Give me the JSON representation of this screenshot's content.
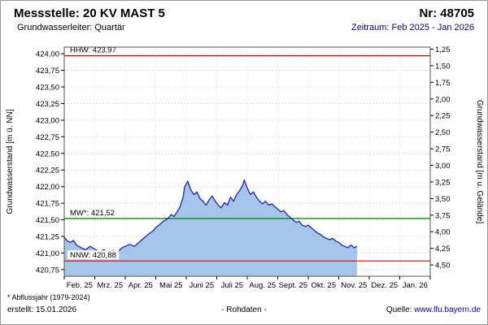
{
  "header": {
    "title": "Messstelle: 20 KV MAST 5",
    "number": "Nr: 48705",
    "aquifer": "Grundwasserleiter: Quartär",
    "period": "Zeitraum: Feb 2025 - Jan 2026"
  },
  "footer": {
    "note": "* Abflussjahr (1979-2024)",
    "created": "erstellt: 15.01.2026",
    "center": "- Rohdaten -",
    "source_label": "Quelle:",
    "source_url": "www.lfu.bayern.de"
  },
  "colors": {
    "period_text": "#0000a0",
    "link": "#0000cc",
    "series_line": "#2222bb",
    "series_fill": "#a6c5ea",
    "hhw_nnw_red": "#dd0000",
    "mw_green": "#008000"
  },
  "chart_data": {
    "type": "area",
    "title": "",
    "ylabel_left": "Grundwasserstand [m ü. NN]",
    "ylabel_right": "Grundwasserstand [m u. Gelände]",
    "ylim_left": [
      420.65,
      424.1
    ],
    "grid": true,
    "y_left_ticks": [
      "424,00",
      "423,75",
      "423,50",
      "423,25",
      "423,00",
      "422,75",
      "422,50",
      "422,25",
      "422,00",
      "421,75",
      "421,50",
      "421,25",
      "421,00",
      "420,75"
    ],
    "y_left_tick_values": [
      424.0,
      423.75,
      423.5,
      423.25,
      423.0,
      422.75,
      422.5,
      422.25,
      422.0,
      421.75,
      421.5,
      421.25,
      421.0,
      420.75
    ],
    "y_right_ticks": [
      "1,25",
      "1,50",
      "1,75",
      "2,00",
      "2,25",
      "2,50",
      "2,75",
      "3,00",
      "3,25",
      "3,50",
      "3,75",
      "4,00",
      "4,25",
      "4,50"
    ],
    "y_right_tick_values": [
      1.25,
      1.5,
      1.75,
      2.0,
      2.25,
      2.5,
      2.75,
      3.0,
      3.25,
      3.5,
      3.75,
      4.0,
      4.25,
      4.5
    ],
    "y_right_ground": 425.32,
    "x_tick_labels": [
      "Feb. 25",
      "Mrz. 25",
      "Apr. 25",
      "Mai 25",
      "Juni 25",
      "Juli 25",
      "Aug. 25",
      "Sept. 25",
      "Okt. 25",
      "Nov. 25",
      "Dez. 25",
      "Jan. 26"
    ],
    "reference_lines": [
      {
        "name": "HHW",
        "label": "HHW: 423,97",
        "value": 423.97,
        "color": "#dd0000"
      },
      {
        "name": "MW",
        "label": "MW*: 421,52",
        "value": 421.52,
        "color": "#008000"
      },
      {
        "name": "NNW",
        "label": "NNW: 420,88",
        "value": 420.88,
        "color": "#dd0000"
      }
    ],
    "series": [
      {
        "name": "Rohdaten",
        "color": "#2222bb",
        "fill": "#a6c5ea",
        "x": [
          0.0,
          0.1,
          0.2,
          0.3,
          0.4,
          0.55,
          0.7,
          0.85,
          1.0,
          1.15,
          1.3,
          1.45,
          1.6,
          1.75,
          1.9,
          2.0,
          2.15,
          2.3,
          2.45,
          2.6,
          2.75,
          2.9,
          3.0,
          3.1,
          3.25,
          3.4,
          3.5,
          3.6,
          3.7,
          3.8,
          3.9,
          3.95,
          4.05,
          4.15,
          4.25,
          4.35,
          4.45,
          4.55,
          4.65,
          4.75,
          4.85,
          4.95,
          5.05,
          5.15,
          5.25,
          5.35,
          5.45,
          5.55,
          5.65,
          5.75,
          5.85,
          5.9,
          6.0,
          6.1,
          6.2,
          6.3,
          6.4,
          6.5,
          6.6,
          6.7,
          6.8,
          6.9,
          7.0,
          7.1,
          7.2,
          7.3,
          7.4,
          7.5,
          7.6,
          7.7,
          7.8,
          7.9,
          8.0,
          8.1,
          8.2,
          8.3,
          8.4,
          8.5,
          8.6,
          8.7,
          8.8,
          8.9,
          9.0,
          9.1,
          9.2,
          9.3,
          9.4,
          9.5,
          9.6
        ],
        "y": [
          421.24,
          421.18,
          421.16,
          421.19,
          421.12,
          421.08,
          421.05,
          421.1,
          421.06,
          421.02,
          421.05,
          421.0,
          421.04,
          421.02,
          421.08,
          421.1,
          421.13,
          421.1,
          421.16,
          421.22,
          421.28,
          421.33,
          421.38,
          421.42,
          421.48,
          421.52,
          421.58,
          421.55,
          421.62,
          421.7,
          421.85,
          422.0,
          422.08,
          421.95,
          421.88,
          421.92,
          421.82,
          421.78,
          421.72,
          421.8,
          421.86,
          421.78,
          421.72,
          421.68,
          421.76,
          421.72,
          421.84,
          421.78,
          421.88,
          421.94,
          422.02,
          422.1,
          421.98,
          421.88,
          421.92,
          421.84,
          421.78,
          421.74,
          421.78,
          421.72,
          421.74,
          421.7,
          421.66,
          421.62,
          421.64,
          421.58,
          421.54,
          421.5,
          421.46,
          421.48,
          421.42,
          421.4,
          421.42,
          421.38,
          421.34,
          421.3,
          421.28,
          421.24,
          421.22,
          421.2,
          421.22,
          421.18,
          421.16,
          421.12,
          421.1,
          421.08,
          421.12,
          421.08,
          421.1
        ]
      }
    ]
  }
}
